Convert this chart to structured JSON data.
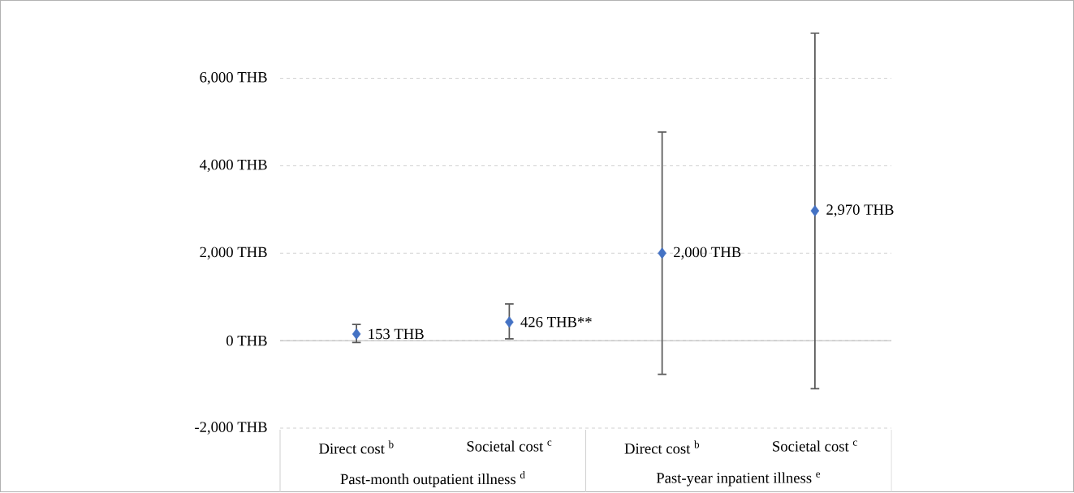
{
  "chart_data": {
    "type": "scatter",
    "categories": [
      "Direct cost $^{b}$",
      "Societal cost $^{c}$",
      "Direct cost $^{b}$",
      "Societal cost $^{c}$"
    ],
    "values": [
      153,
      426,
      2000,
      2970
    ],
    "errors": [
      [
        -40,
        370
      ],
      [
        40,
        840
      ],
      [
        -770,
        4770
      ],
      [
        -1100,
        7030
      ]
    ],
    "value_labels": [
      "153 THB",
      "426 THB**",
      "2,000 THB",
      "2,970 THB"
    ],
    "color": "#4472c4",
    "marker": "diamond",
    "grid": "y",
    "ylim": [
      -2000,
      7030
    ],
    "yticks": [
      {
        "value": -2000,
        "label": "-2,000 THB"
      },
      {
        "value": 0,
        "label": "0 THB"
      },
      {
        "value": 2000,
        "label": "2,000 THB"
      },
      {
        "value": 4000,
        "label": "4,000 THB"
      },
      {
        "value": 6000,
        "label": "6,000 THB"
      }
    ],
    "annotations": [
      "Past-month outpatient illness $^{d}$",
      "Past-year inpatient illness $^{e}$"
    ]
  }
}
